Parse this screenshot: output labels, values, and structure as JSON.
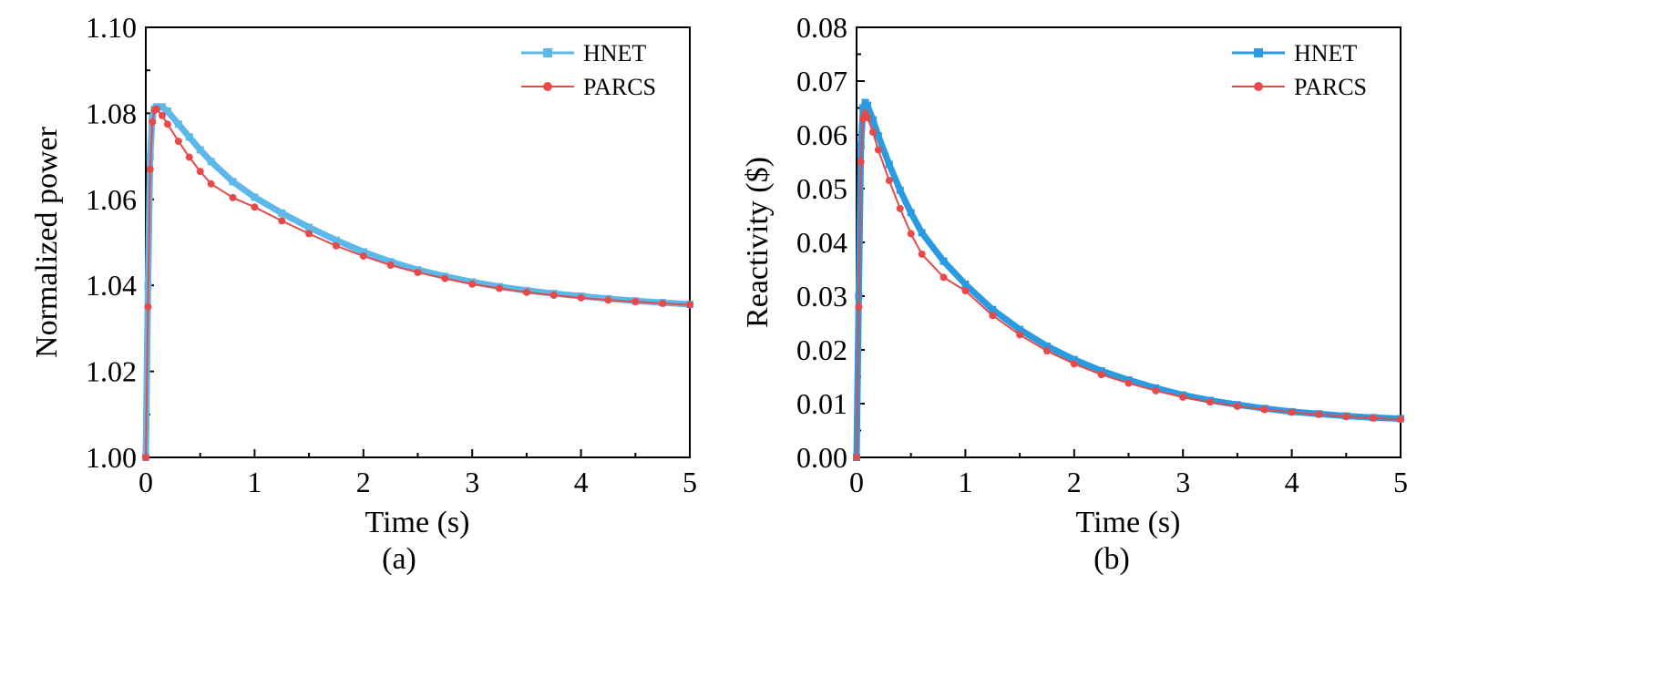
{
  "colors": {
    "hnet_a": "#5bb8e8",
    "hnet_b": "#2a9be0",
    "parcs": "#e84a4a"
  },
  "chart_data": [
    {
      "type": "line",
      "panel_label": "(a)",
      "xlabel": "Time (s)",
      "ylabel": "Normalized power",
      "xlim": [
        0,
        5
      ],
      "ylim": [
        1.0,
        1.1
      ],
      "xticks": [
        "0",
        "1",
        "2",
        "3",
        "4",
        "5"
      ],
      "yticks": [
        "1.00",
        "1.02",
        "1.04",
        "1.06",
        "1.08",
        "1.10"
      ],
      "legend_position": "top-right",
      "series": [
        {
          "name": "HNET",
          "color": "#5bb8e8",
          "x": [
            0,
            0.02,
            0.04,
            0.06,
            0.08,
            0.1,
            0.15,
            0.2,
            0.3,
            0.4,
            0.5,
            0.6,
            0.8,
            1.0,
            1.25,
            1.5,
            1.75,
            2.0,
            2.25,
            2.5,
            2.75,
            3.0,
            3.25,
            3.5,
            3.75,
            4.0,
            4.25,
            4.5,
            4.75,
            5.0
          ],
          "y": [
            1.0,
            1.04,
            1.07,
            1.079,
            1.081,
            1.0815,
            1.0815,
            1.0805,
            1.0775,
            1.0745,
            1.0715,
            1.0688,
            1.0641,
            1.0605,
            1.0568,
            1.0535,
            1.0505,
            1.0478,
            1.0455,
            1.0436,
            1.0421,
            1.0408,
            1.0397,
            1.0388,
            1.0381,
            1.0375,
            1.0369,
            1.0364,
            1.036,
            1.0356
          ]
        },
        {
          "name": "PARCS",
          "color": "#e84a4a",
          "x": [
            0,
            0.02,
            0.04,
            0.06,
            0.08,
            0.1,
            0.15,
            0.2,
            0.3,
            0.4,
            0.5,
            0.6,
            0.8,
            1.0,
            1.25,
            1.5,
            1.75,
            2.0,
            2.25,
            2.5,
            2.75,
            3.0,
            3.25,
            3.5,
            3.75,
            4.0,
            4.25,
            4.5,
            4.75,
            5.0
          ],
          "y": [
            1.0,
            1.035,
            1.067,
            1.078,
            1.0808,
            1.081,
            1.0795,
            1.0775,
            1.0735,
            1.0698,
            1.0665,
            1.0636,
            1.0604,
            1.0582,
            1.055,
            1.052,
            1.0492,
            1.0468,
            1.0447,
            1.043,
            1.0416,
            1.0403,
            1.0393,
            1.0384,
            1.0377,
            1.0371,
            1.0366,
            1.0362,
            1.0358,
            1.0355
          ]
        }
      ]
    },
    {
      "type": "line",
      "panel_label": "(b)",
      "xlabel": "Time (s)",
      "ylabel": "Reactivity ($)",
      "xlim": [
        0,
        5
      ],
      "ylim": [
        0.0,
        0.08
      ],
      "xticks": [
        "0",
        "1",
        "2",
        "3",
        "4",
        "5"
      ],
      "yticks": [
        "0.00",
        "0.01",
        "0.02",
        "0.03",
        "0.04",
        "0.05",
        "0.06",
        "0.07",
        "0.08"
      ],
      "legend_position": "top-right",
      "series": [
        {
          "name": "HNET",
          "color": "#2a9be0",
          "x": [
            0,
            0.02,
            0.04,
            0.06,
            0.08,
            0.1,
            0.15,
            0.2,
            0.3,
            0.4,
            0.5,
            0.6,
            0.8,
            1.0,
            1.25,
            1.5,
            1.75,
            2.0,
            2.25,
            2.5,
            2.75,
            3.0,
            3.25,
            3.5,
            3.75,
            4.0,
            4.25,
            4.5,
            4.75,
            5.0
          ],
          "y": [
            0.0,
            0.03,
            0.058,
            0.065,
            0.066,
            0.0655,
            0.0628,
            0.0598,
            0.0545,
            0.0497,
            0.0455,
            0.0418,
            0.0365,
            0.0322,
            0.0275,
            0.0238,
            0.0207,
            0.0182,
            0.0161,
            0.0144,
            0.0129,
            0.0116,
            0.0106,
            0.0098,
            0.0091,
            0.0085,
            0.0081,
            0.0077,
            0.0074,
            0.0072
          ]
        },
        {
          "name": "PARCS",
          "color": "#e84a4a",
          "x": [
            0,
            0.02,
            0.04,
            0.06,
            0.08,
            0.1,
            0.15,
            0.2,
            0.3,
            0.4,
            0.5,
            0.6,
            0.8,
            1.0,
            1.25,
            1.5,
            1.75,
            2.0,
            2.25,
            2.5,
            2.75,
            3.0,
            3.25,
            3.5,
            3.75,
            4.0,
            4.25,
            4.5,
            4.75,
            5.0
          ],
          "y": [
            0.0,
            0.028,
            0.055,
            0.063,
            0.064,
            0.0632,
            0.0605,
            0.0572,
            0.0515,
            0.0463,
            0.0416,
            0.0378,
            0.0335,
            0.031,
            0.0264,
            0.0228,
            0.0198,
            0.0174,
            0.0154,
            0.0138,
            0.0124,
            0.0112,
            0.0103,
            0.0095,
            0.0089,
            0.0084,
            0.008,
            0.0076,
            0.0073,
            0.0071
          ]
        }
      ]
    }
  ]
}
